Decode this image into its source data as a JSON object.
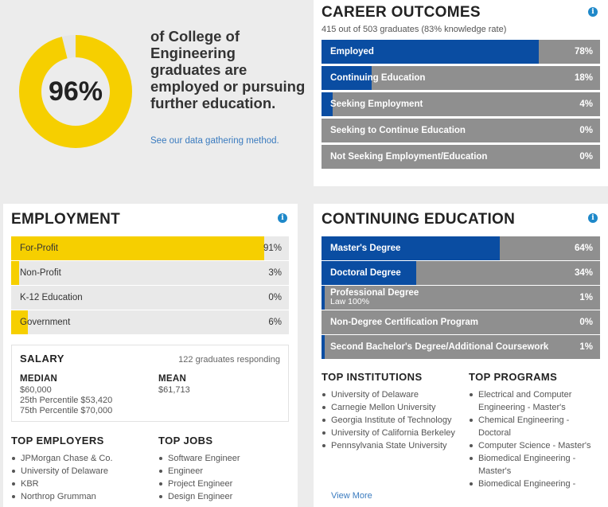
{
  "summary": {
    "percent_label": "96%",
    "percent_value": 96,
    "text": "of College of Engineering graduates are employed or pursuing further education.",
    "link_text": "See our data gathering method.",
    "colors": {
      "ring": "#f6cf00",
      "track": "#e6e6e6"
    }
  },
  "career": {
    "title": "CAREER OUTCOMES",
    "subtitle": "415 out of 503 graduates (83% knowledge rate)",
    "info_icon": "info-icon",
    "rows": [
      {
        "label": "Employed",
        "value_label": "78%",
        "value": 78
      },
      {
        "label": "Continuing Education",
        "value_label": "18%",
        "value": 18
      },
      {
        "label": "Seeking Employment",
        "value_label": "4%",
        "value": 4
      },
      {
        "label": "Seeking to Continue Education",
        "value_label": "0%",
        "value": 0
      },
      {
        "label": "Not Seeking Employment/Education",
        "value_label": "0%",
        "value": 0
      }
    ]
  },
  "employment": {
    "title": "EMPLOYMENT",
    "info_icon": "info-icon",
    "rows": [
      {
        "label": "For-Profit",
        "value_label": "91%",
        "value": 91
      },
      {
        "label": "Non-Profit",
        "value_label": "3%",
        "value": 3
      },
      {
        "label": "K-12 Education",
        "value_label": "0%",
        "value": 0
      },
      {
        "label": "Government",
        "value_label": "6%",
        "value": 6
      }
    ],
    "salary": {
      "title": "SALARY",
      "responding": "122 graduates responding",
      "median_label": "MEDIAN",
      "median_value": "$60,000",
      "p25": "25th Percentile $53,420",
      "p75": "75th Percentile $70,000",
      "mean_label": "MEAN",
      "mean_value": "$61,713"
    },
    "top_employers": {
      "title": "TOP EMPLOYERS",
      "items": [
        "JPMorgan Chase & Co.",
        "University of Delaware",
        "KBR",
        "Northrop Grumman"
      ]
    },
    "top_jobs": {
      "title": "TOP JOBS",
      "items": [
        "Software Engineer",
        "Engineer",
        "Project Engineer",
        "Design Engineer"
      ]
    }
  },
  "continuing": {
    "title": "CONTINUING EDUCATION",
    "info_icon": "info-icon",
    "rows": [
      {
        "label": "Master's Degree",
        "value_label": "64%",
        "value": 64
      },
      {
        "label": "Doctoral Degree",
        "value_label": "34%",
        "value": 34
      },
      {
        "label": "Professional Degree",
        "sub": "Law 100%",
        "value_label": "1%",
        "value": 1
      },
      {
        "label": "Non-Degree Certification Program",
        "value_label": "0%",
        "value": 0
      },
      {
        "label": "Second Bachelor's Degree/Additional Coursework",
        "value_label": "1%",
        "value": 1
      }
    ],
    "top_institutions": {
      "title": "TOP INSTITUTIONS",
      "items": [
        "University of Delaware",
        "Carnegie Mellon University",
        "Georgia Institute of Technology",
        "University of California Berkeley",
        "Pennsylvania State University"
      ],
      "view_more": "View More"
    },
    "top_programs": {
      "title": "TOP PROGRAMS",
      "items": [
        "Electrical and Computer Engineering - Master's",
        "Chemical Engineering - Doctoral",
        "Computer Science - Master's",
        "Biomedical Engineering - Master's",
        "Biomedical Engineering -"
      ]
    }
  },
  "chart_data": [
    {
      "type": "pie",
      "title": "of College of Engineering graduates are employed or pursuing further education.",
      "categories": [
        "Employed or pursuing further education",
        "Other"
      ],
      "values": [
        96,
        4
      ]
    },
    {
      "type": "bar",
      "title": "CAREER OUTCOMES",
      "categories": [
        "Employed",
        "Continuing Education",
        "Seeking Employment",
        "Seeking to Continue Education",
        "Not Seeking Employment/Education"
      ],
      "values": [
        78,
        18,
        4,
        0,
        0
      ],
      "ylim": [
        0,
        100
      ]
    },
    {
      "type": "bar",
      "title": "EMPLOYMENT",
      "categories": [
        "For-Profit",
        "Non-Profit",
        "K-12 Education",
        "Government"
      ],
      "values": [
        91,
        3,
        0,
        6
      ],
      "ylim": [
        0,
        100
      ]
    },
    {
      "type": "bar",
      "title": "CONTINUING EDUCATION",
      "categories": [
        "Master's Degree",
        "Doctoral Degree",
        "Professional Degree",
        "Non-Degree Certification Program",
        "Second Bachelor's Degree/Additional Coursework"
      ],
      "values": [
        64,
        34,
        1,
        0,
        1
      ],
      "ylim": [
        0,
        100
      ]
    }
  ]
}
